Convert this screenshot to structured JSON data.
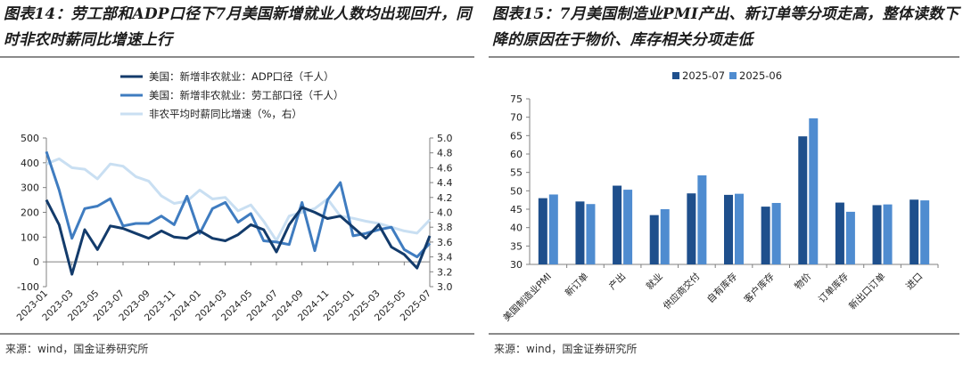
{
  "left_panel": {
    "title": "图表14：劳工部和ADP口径下7月美国新增就业人数均出现回升，同时非农时薪同比增速上行",
    "source": "来源：wind，国金证券研究所"
  },
  "right_panel": {
    "title": "图表15：7月美国制造业PMI产出、新订单等分项走高，整体读数下降的原因在于物价、库存相关分项走低",
    "source": "来源：wind，国金证券研究所"
  },
  "colors": {
    "adp": "#133b6b",
    "bls": "#3f7cc0",
    "wage": "#c9dff2",
    "bar_2025_07": "#1e4f8c",
    "bar_2025_06": "#4f8cd0",
    "axis": "#808080",
    "rule": "#8a8a8a"
  },
  "chart_data": [
    {
      "type": "line",
      "x_tick_labels": [
        "2023-01",
        "2023-03",
        "2023-05",
        "2023-07",
        "2023-09",
        "2023-11",
        "2024-01",
        "2024-03",
        "2024-05",
        "2024-07",
        "2024-09",
        "2024-11",
        "2025-01",
        "2025-03",
        "2025-05",
        "2025-07"
      ],
      "x": [
        "2023-01",
        "2023-02",
        "2023-03",
        "2023-04",
        "2023-05",
        "2023-06",
        "2023-07",
        "2023-08",
        "2023-09",
        "2023-10",
        "2023-11",
        "2023-12",
        "2024-01",
        "2024-02",
        "2024-03",
        "2024-04",
        "2024-05",
        "2024-06",
        "2024-07",
        "2024-08",
        "2024-09",
        "2024-10",
        "2024-11",
        "2024-12",
        "2025-01",
        "2025-02",
        "2025-03",
        "2025-04",
        "2025-05",
        "2025-06",
        "2025-07"
      ],
      "ylim": [
        -100,
        500
      ],
      "yticks": [
        -100,
        0,
        100,
        200,
        300,
        400,
        500
      ],
      "y2lim": [
        3.0,
        5.0
      ],
      "y2ticks": [
        "3.0",
        "3.2",
        "3.4",
        "3.6",
        "3.8",
        "4.0",
        "4.2",
        "4.4",
        "4.6",
        "4.8",
        "5.0"
      ],
      "legend_position": "top-left",
      "series": [
        {
          "name": "美国：新增非农就业：ADP口径（千人）",
          "axis": "left",
          "values": [
            250,
            150,
            -50,
            130,
            50,
            145,
            135,
            115,
            95,
            125,
            100,
            95,
            125,
            95,
            85,
            110,
            150,
            130,
            40,
            150,
            220,
            200,
            175,
            185,
            140,
            95,
            150,
            60,
            30,
            -25,
            105
          ]
        },
        {
          "name": "美国：新增非农就业：劳工部口径（千人）",
          "axis": "left",
          "values": [
            445,
            290,
            95,
            215,
            225,
            255,
            145,
            155,
            155,
            185,
            150,
            265,
            115,
            215,
            240,
            160,
            195,
            85,
            80,
            70,
            240,
            45,
            250,
            320,
            105,
            115,
            130,
            140,
            50,
            20,
            75
          ]
        },
        {
          "name": "非农平均时薪同比增速（%，右）",
          "axis": "right",
          "values": [
            4.65,
            4.72,
            4.6,
            4.58,
            4.45,
            4.65,
            4.62,
            4.48,
            4.42,
            4.22,
            4.12,
            4.15,
            4.3,
            4.18,
            4.2,
            4.02,
            4.1,
            3.88,
            3.62,
            3.95,
            4.0,
            4.05,
            4.18,
            3.95,
            3.92,
            3.88,
            3.85,
            3.8,
            3.75,
            3.72,
            3.9
          ]
        }
      ]
    },
    {
      "type": "bar",
      "categories": [
        "美国制造业PMI",
        "新订单",
        "产出",
        "就业",
        "供应商交付",
        "自有库存",
        "客户库存",
        "物价",
        "订单库存",
        "新出口订单",
        "进口"
      ],
      "ylim": [
        30,
        75
      ],
      "yticks": [
        30,
        35,
        40,
        45,
        50,
        55,
        60,
        65,
        70,
        75
      ],
      "legend_position": "top-left",
      "series": [
        {
          "name": "2025-07",
          "values": [
            48.0,
            47.1,
            51.4,
            43.4,
            49.3,
            48.9,
            45.7,
            64.8,
            46.8,
            46.1,
            47.6
          ]
        },
        {
          "name": "2025-06",
          "values": [
            49.0,
            46.4,
            50.3,
            45.0,
            54.2,
            49.2,
            46.7,
            69.7,
            44.3,
            46.3,
            47.4
          ]
        }
      ]
    }
  ]
}
